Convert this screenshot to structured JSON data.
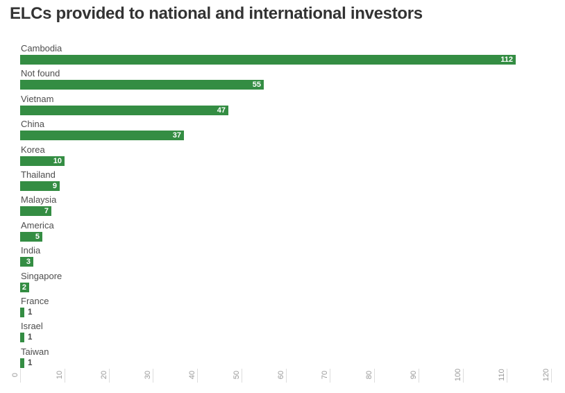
{
  "chart_data": {
    "type": "bar",
    "orientation": "horizontal",
    "title": "ELCs provided to national and international investors",
    "categories": [
      "Cambodia",
      "Not found",
      "Vietnam",
      "China",
      "Korea",
      "Thailand",
      "Malaysia",
      "America",
      "India",
      "Singapore",
      "France",
      "Israel",
      "Taiwan"
    ],
    "values": [
      112,
      55,
      47,
      37,
      10,
      9,
      7,
      5,
      3,
      2,
      1,
      1,
      1
    ],
    "xlabel": "",
    "ylabel": "",
    "xlim": [
      0,
      120
    ],
    "x_ticks": [
      0,
      10,
      20,
      30,
      40,
      50,
      60,
      70,
      80,
      90,
      100,
      110,
      120
    ],
    "grid": false,
    "legend": "none",
    "colors": {
      "bar": "#348d43",
      "category_label": "#4d4d4d",
      "value_label_inside": "#ffffff",
      "value_label_outside": "#4a4a4a",
      "tick_label": "#999999",
      "tick_line": "#dddddd",
      "title": "#333333"
    }
  }
}
